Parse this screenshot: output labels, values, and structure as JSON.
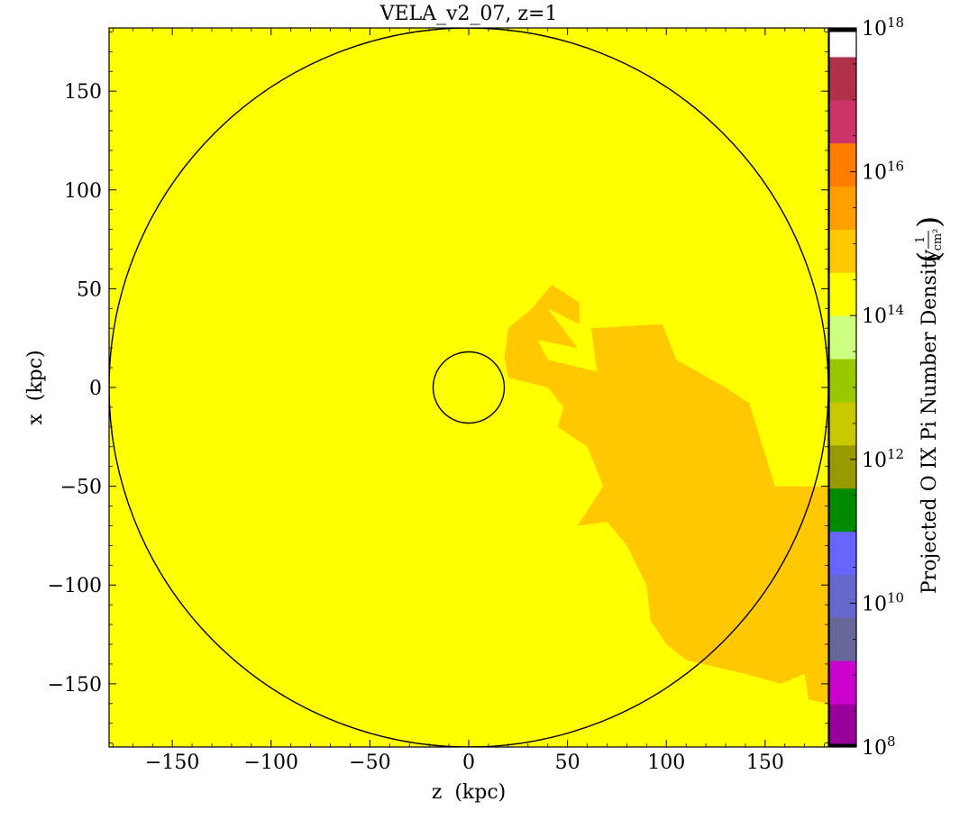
{
  "chart_data": {
    "type": "heatmap",
    "title": "VELA_v2_07, z=1",
    "xlabel": "z  (kpc)",
    "ylabel": "x  (kpc)",
    "xlim": [
      -182,
      182
    ],
    "ylim": [
      -182,
      182
    ],
    "xticks": [
      -150,
      -100,
      -50,
      0,
      50,
      100,
      150
    ],
    "xtick_labels": [
      "−150",
      "−100",
      "−50",
      "0",
      "50",
      "100",
      "150"
    ],
    "yticks": [
      150,
      100,
      50,
      0,
      -50,
      -100,
      -150
    ],
    "ytick_labels": [
      "150",
      "100",
      "50",
      "0",
      "−50",
      "−100",
      "−150"
    ],
    "background_level": "1e14 – 1e15",
    "background_color": "#ffff00",
    "feature_color": "#ffc800",
    "feature_polygons": [
      [
        [
          56,
          43
        ],
        [
          56,
          32
        ],
        [
          40,
          40
        ],
        [
          55,
          20
        ],
        [
          35,
          24
        ],
        [
          40,
          14
        ],
        [
          65,
          8
        ],
        [
          62,
          30
        ],
        [
          98,
          32
        ],
        [
          105,
          14
        ],
        [
          130,
          0
        ],
        [
          142,
          -8
        ],
        [
          155,
          -50
        ],
        [
          182,
          -50
        ],
        [
          182,
          -160
        ],
        [
          172,
          -158
        ],
        [
          170,
          -145
        ],
        [
          158,
          -150
        ],
        [
          140,
          -145
        ],
        [
          110,
          -138
        ],
        [
          100,
          -130
        ],
        [
          92,
          -118
        ],
        [
          90,
          -100
        ],
        [
          80,
          -80
        ],
        [
          70,
          -68
        ],
        [
          55,
          -70
        ],
        [
          68,
          -50
        ],
        [
          60,
          -30
        ],
        [
          45,
          -20
        ],
        [
          48,
          -10
        ],
        [
          40,
          0
        ],
        [
          20,
          5
        ],
        [
          18,
          15
        ],
        [
          20,
          30
        ],
        [
          32,
          40
        ],
        [
          42,
          52
        ]
      ]
    ],
    "circles": [
      {
        "cx": 0,
        "cy": 0,
        "r": 182
      },
      {
        "cx": 0,
        "cy": 0,
        "r": 18
      }
    ],
    "colorbar": {
      "label": "Projected O IX Pi Number Density",
      "unit_numerator": "1",
      "unit_denominator": "cm²",
      "log_min": 8,
      "log_max": 18,
      "tick_exponents": [
        8,
        10,
        12,
        14,
        16,
        18
      ],
      "tick_base": "10",
      "bands": [
        {
          "from": 8.0,
          "to": 8.05,
          "color": "#000000"
        },
        {
          "from": 8.05,
          "to": 8.6,
          "color": "#99009b"
        },
        {
          "from": 8.6,
          "to": 9.2,
          "color": "#cc00cc"
        },
        {
          "from": 9.2,
          "to": 9.8,
          "color": "#666699"
        },
        {
          "from": 9.8,
          "to": 10.4,
          "color": "#6666cc"
        },
        {
          "from": 10.4,
          "to": 11.0,
          "color": "#6666ff"
        },
        {
          "from": 11.0,
          "to": 11.6,
          "color": "#008c00"
        },
        {
          "from": 11.6,
          "to": 12.2,
          "color": "#999900"
        },
        {
          "from": 12.2,
          "to": 12.8,
          "color": "#c8c800"
        },
        {
          "from": 12.8,
          "to": 13.4,
          "color": "#99c800"
        },
        {
          "from": 13.4,
          "to": 14.0,
          "color": "#ccff80"
        },
        {
          "from": 14.0,
          "to": 14.6,
          "color": "#ffff00"
        },
        {
          "from": 14.6,
          "to": 15.2,
          "color": "#ffc800"
        },
        {
          "from": 15.2,
          "to": 15.8,
          "color": "#ffa000"
        },
        {
          "from": 15.8,
          "to": 16.4,
          "color": "#ff7d00"
        },
        {
          "from": 16.4,
          "to": 17.0,
          "color": "#cc3366"
        },
        {
          "from": 17.0,
          "to": 17.6,
          "color": "#b0304a"
        },
        {
          "from": 17.6,
          "to": 17.95,
          "color": "#ffffff"
        },
        {
          "from": 17.95,
          "to": 18.0,
          "color": "#000000"
        }
      ]
    }
  }
}
